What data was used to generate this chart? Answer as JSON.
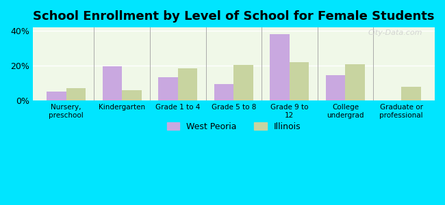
{
  "title": "School Enrollment by Level of School for Female Students",
  "categories": [
    "Nursery,\npreschool",
    "Kindergarten",
    "Grade 1 to 4",
    "Grade 5 to 8",
    "Grade 9 to\n12",
    "College\nundergrad",
    "Graduate or\nprofessional"
  ],
  "west_peoria": [
    5,
    19.5,
    13.5,
    9.5,
    38,
    14.5,
    0
  ],
  "illinois": [
    7,
    6,
    18.5,
    20.5,
    22,
    21,
    8
  ],
  "bar_color_wp": "#c9a8e0",
  "bar_color_il": "#c8d4a0",
  "background_outer": "#00e5ff",
  "background_inner": "#f0f8e8",
  "ylim": [
    0,
    42
  ],
  "yticks": [
    0,
    20,
    40
  ],
  "ytick_labels": [
    "0%",
    "20%",
    "40%"
  ],
  "title_fontsize": 13,
  "legend_wp": "West Peoria",
  "legend_il": "Illinois"
}
